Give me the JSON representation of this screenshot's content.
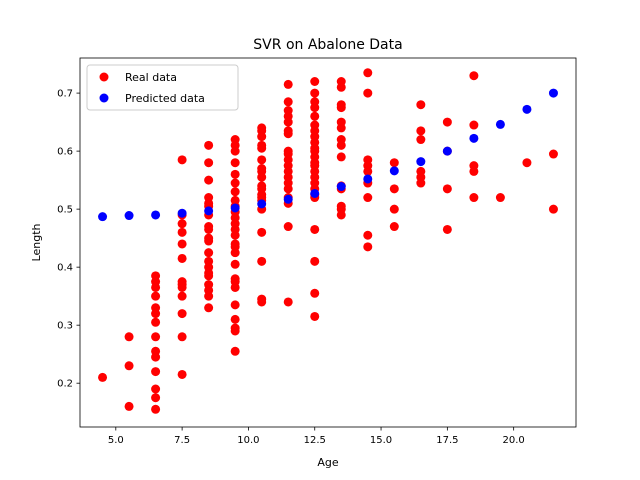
{
  "chart_data": {
    "type": "scatter",
    "title": "SVR on Abalone Data",
    "xlabel": "Age",
    "ylabel": "Length",
    "xlim": [
      3.65,
      22.35
    ],
    "ylim": [
      0.1245,
      0.7605
    ],
    "xticks": [
      5.0,
      7.5,
      10.0,
      12.5,
      15.0,
      17.5,
      20.0
    ],
    "xtick_labels": [
      "5.0",
      "7.5",
      "10.0",
      "12.5",
      "15.0",
      "17.5",
      "20.0"
    ],
    "yticks": [
      0.2,
      0.3,
      0.4,
      0.5,
      0.6,
      0.7
    ],
    "ytick_labels": [
      "0.2",
      "0.3",
      "0.4",
      "0.5",
      "0.6",
      "0.7"
    ],
    "grid": false,
    "legend": "top-left",
    "series": [
      {
        "name": "Real data",
        "color": "#ff0000",
        "points": [
          [
            4.5,
            0.21
          ],
          [
            5.5,
            0.28
          ],
          [
            5.5,
            0.23
          ],
          [
            5.5,
            0.16
          ],
          [
            6.5,
            0.385
          ],
          [
            6.5,
            0.375
          ],
          [
            6.5,
            0.365
          ],
          [
            6.5,
            0.35
          ],
          [
            6.5,
            0.33
          ],
          [
            6.5,
            0.32
          ],
          [
            6.5,
            0.305
          ],
          [
            6.5,
            0.28
          ],
          [
            6.5,
            0.255
          ],
          [
            6.5,
            0.245
          ],
          [
            6.5,
            0.22
          ],
          [
            6.5,
            0.19
          ],
          [
            6.5,
            0.175
          ],
          [
            6.5,
            0.155
          ],
          [
            7.5,
            0.585
          ],
          [
            7.5,
            0.49
          ],
          [
            7.5,
            0.475
          ],
          [
            7.5,
            0.46
          ],
          [
            7.5,
            0.44
          ],
          [
            7.5,
            0.415
          ],
          [
            7.5,
            0.375
          ],
          [
            7.5,
            0.37
          ],
          [
            7.5,
            0.365
          ],
          [
            7.5,
            0.35
          ],
          [
            7.5,
            0.32
          ],
          [
            7.5,
            0.28
          ],
          [
            7.5,
            0.215
          ],
          [
            8.5,
            0.61
          ],
          [
            8.5,
            0.58
          ],
          [
            8.5,
            0.55
          ],
          [
            8.5,
            0.52
          ],
          [
            8.5,
            0.51
          ],
          [
            8.5,
            0.505
          ],
          [
            8.5,
            0.49
          ],
          [
            8.5,
            0.47
          ],
          [
            8.5,
            0.465
          ],
          [
            8.5,
            0.45
          ],
          [
            8.5,
            0.445
          ],
          [
            8.5,
            0.425
          ],
          [
            8.5,
            0.41
          ],
          [
            8.5,
            0.4
          ],
          [
            8.5,
            0.39
          ],
          [
            8.5,
            0.385
          ],
          [
            8.5,
            0.37
          ],
          [
            8.5,
            0.36
          ],
          [
            8.5,
            0.35
          ],
          [
            8.5,
            0.33
          ],
          [
            9.5,
            0.62
          ],
          [
            9.5,
            0.61
          ],
          [
            9.5,
            0.6
          ],
          [
            9.5,
            0.58
          ],
          [
            9.5,
            0.56
          ],
          [
            9.5,
            0.545
          ],
          [
            9.5,
            0.53
          ],
          [
            9.5,
            0.515
          ],
          [
            9.5,
            0.505
          ],
          [
            9.5,
            0.495
          ],
          [
            9.5,
            0.485
          ],
          [
            9.5,
            0.475
          ],
          [
            9.5,
            0.465
          ],
          [
            9.5,
            0.455
          ],
          [
            9.5,
            0.44
          ],
          [
            9.5,
            0.435
          ],
          [
            9.5,
            0.425
          ],
          [
            9.5,
            0.405
          ],
          [
            9.5,
            0.38
          ],
          [
            9.5,
            0.375
          ],
          [
            9.5,
            0.365
          ],
          [
            9.5,
            0.335
          ],
          [
            9.5,
            0.31
          ],
          [
            9.5,
            0.295
          ],
          [
            9.5,
            0.29
          ],
          [
            9.5,
            0.255
          ],
          [
            10.5,
            0.64
          ],
          [
            10.5,
            0.635
          ],
          [
            10.5,
            0.625
          ],
          [
            10.5,
            0.61
          ],
          [
            10.5,
            0.605
          ],
          [
            10.5,
            0.585
          ],
          [
            10.5,
            0.57
          ],
          [
            10.5,
            0.565
          ],
          [
            10.5,
            0.555
          ],
          [
            10.5,
            0.54
          ],
          [
            10.5,
            0.535
          ],
          [
            10.5,
            0.525
          ],
          [
            10.5,
            0.52
          ],
          [
            10.5,
            0.515
          ],
          [
            10.5,
            0.5
          ],
          [
            10.5,
            0.46
          ],
          [
            10.5,
            0.41
          ],
          [
            10.5,
            0.345
          ],
          [
            10.5,
            0.34
          ],
          [
            11.5,
            0.715
          ],
          [
            11.5,
            0.685
          ],
          [
            11.5,
            0.67
          ],
          [
            11.5,
            0.66
          ],
          [
            11.5,
            0.65
          ],
          [
            11.5,
            0.635
          ],
          [
            11.5,
            0.63
          ],
          [
            11.5,
            0.6
          ],
          [
            11.5,
            0.595
          ],
          [
            11.5,
            0.585
          ],
          [
            11.5,
            0.575
          ],
          [
            11.5,
            0.565
          ],
          [
            11.5,
            0.555
          ],
          [
            11.5,
            0.545
          ],
          [
            11.5,
            0.535
          ],
          [
            11.5,
            0.52
          ],
          [
            11.5,
            0.51
          ],
          [
            11.5,
            0.47
          ],
          [
            11.5,
            0.34
          ],
          [
            12.5,
            0.72
          ],
          [
            12.5,
            0.7
          ],
          [
            12.5,
            0.685
          ],
          [
            12.5,
            0.675
          ],
          [
            12.5,
            0.66
          ],
          [
            12.5,
            0.645
          ],
          [
            12.5,
            0.635
          ],
          [
            12.5,
            0.625
          ],
          [
            12.5,
            0.615
          ],
          [
            12.5,
            0.605
          ],
          [
            12.5,
            0.6
          ],
          [
            12.5,
            0.59
          ],
          [
            12.5,
            0.58
          ],
          [
            12.5,
            0.575
          ],
          [
            12.5,
            0.565
          ],
          [
            12.5,
            0.555
          ],
          [
            12.5,
            0.545
          ],
          [
            12.5,
            0.535
          ],
          [
            12.5,
            0.525
          ],
          [
            12.5,
            0.52
          ],
          [
            12.5,
            0.465
          ],
          [
            12.5,
            0.41
          ],
          [
            12.5,
            0.355
          ],
          [
            12.5,
            0.315
          ],
          [
            13.5,
            0.72
          ],
          [
            13.5,
            0.71
          ],
          [
            13.5,
            0.68
          ],
          [
            13.5,
            0.675
          ],
          [
            13.5,
            0.65
          ],
          [
            13.5,
            0.64
          ],
          [
            13.5,
            0.62
          ],
          [
            13.5,
            0.61
          ],
          [
            13.5,
            0.59
          ],
          [
            13.5,
            0.54
          ],
          [
            13.5,
            0.535
          ],
          [
            13.5,
            0.505
          ],
          [
            13.5,
            0.5
          ],
          [
            13.5,
            0.49
          ],
          [
            14.5,
            0.735
          ],
          [
            14.5,
            0.7
          ],
          [
            14.5,
            0.585
          ],
          [
            14.5,
            0.575
          ],
          [
            14.5,
            0.565
          ],
          [
            14.5,
            0.545
          ],
          [
            14.5,
            0.52
          ],
          [
            14.5,
            0.455
          ],
          [
            14.5,
            0.435
          ],
          [
            15.5,
            0.58
          ],
          [
            15.5,
            0.535
          ],
          [
            15.5,
            0.5
          ],
          [
            15.5,
            0.47
          ],
          [
            16.5,
            0.68
          ],
          [
            16.5,
            0.635
          ],
          [
            16.5,
            0.62
          ],
          [
            16.5,
            0.565
          ],
          [
            16.5,
            0.555
          ],
          [
            16.5,
            0.545
          ],
          [
            17.5,
            0.65
          ],
          [
            17.5,
            0.6
          ],
          [
            17.5,
            0.535
          ],
          [
            17.5,
            0.465
          ],
          [
            18.5,
            0.73
          ],
          [
            18.5,
            0.645
          ],
          [
            18.5,
            0.575
          ],
          [
            18.5,
            0.565
          ],
          [
            18.5,
            0.52
          ],
          [
            19.5,
            0.52
          ],
          [
            20.5,
            0.58
          ],
          [
            21.5,
            0.595
          ],
          [
            21.5,
            0.5
          ]
        ]
      },
      {
        "name": "Predicted data",
        "color": "#0000ff",
        "points": [
          [
            4.5,
            0.487
          ],
          [
            5.5,
            0.489
          ],
          [
            6.5,
            0.49
          ],
          [
            7.5,
            0.493
          ],
          [
            8.5,
            0.497
          ],
          [
            9.5,
            0.502
          ],
          [
            10.5,
            0.509
          ],
          [
            11.5,
            0.517
          ],
          [
            12.5,
            0.527
          ],
          [
            13.5,
            0.539
          ],
          [
            14.5,
            0.552
          ],
          [
            15.5,
            0.566
          ],
          [
            16.5,
            0.582
          ],
          [
            17.5,
            0.6
          ],
          [
            18.5,
            0.622
          ],
          [
            19.5,
            0.646
          ],
          [
            20.5,
            0.672
          ],
          [
            21.5,
            0.7
          ]
        ]
      }
    ]
  }
}
